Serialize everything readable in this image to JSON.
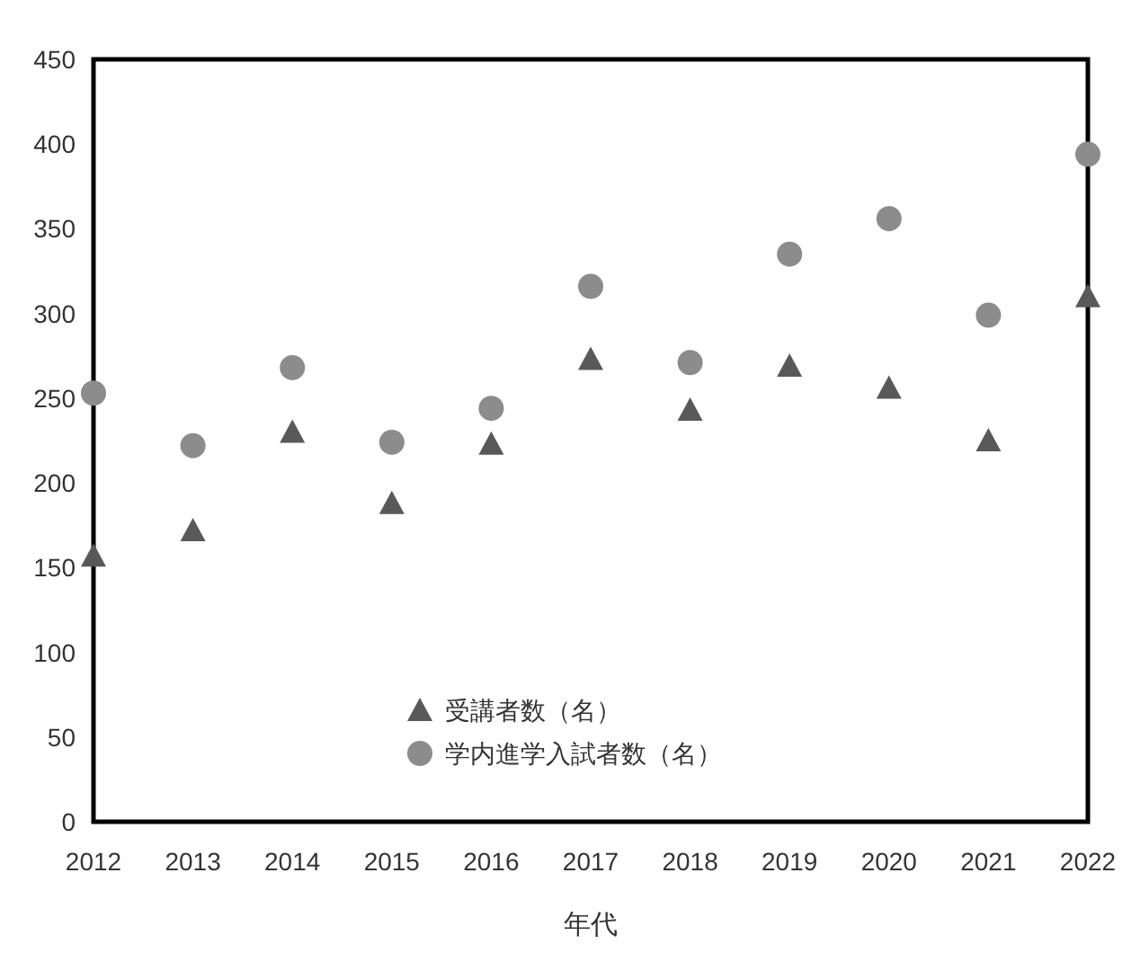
{
  "chart_data": {
    "type": "scatter",
    "xlabel": "年代",
    "categories": [
      "2012",
      "2013",
      "2014",
      "2015",
      "2016",
      "2017",
      "2018",
      "2019",
      "2020",
      "2021",
      "2022"
    ],
    "ylim": [
      0,
      450
    ],
    "yticks": [
      0,
      50,
      100,
      150,
      200,
      250,
      300,
      350,
      400,
      450
    ],
    "grid": false,
    "legend": "bottom",
    "series": [
      {
        "name": "受講者数（名）",
        "color": "#595959",
        "marker": "triangle",
        "values": [
          157,
          172,
          230,
          188,
          223,
          273,
          243,
          269,
          256,
          225,
          310
        ]
      },
      {
        "name": "学内進学入試者数（名）",
        "color": "#8c8c8c",
        "marker": "circle",
        "values": [
          253,
          222,
          268,
          224,
          244,
          316,
          271,
          335,
          356,
          299,
          394
        ]
      }
    ]
  }
}
